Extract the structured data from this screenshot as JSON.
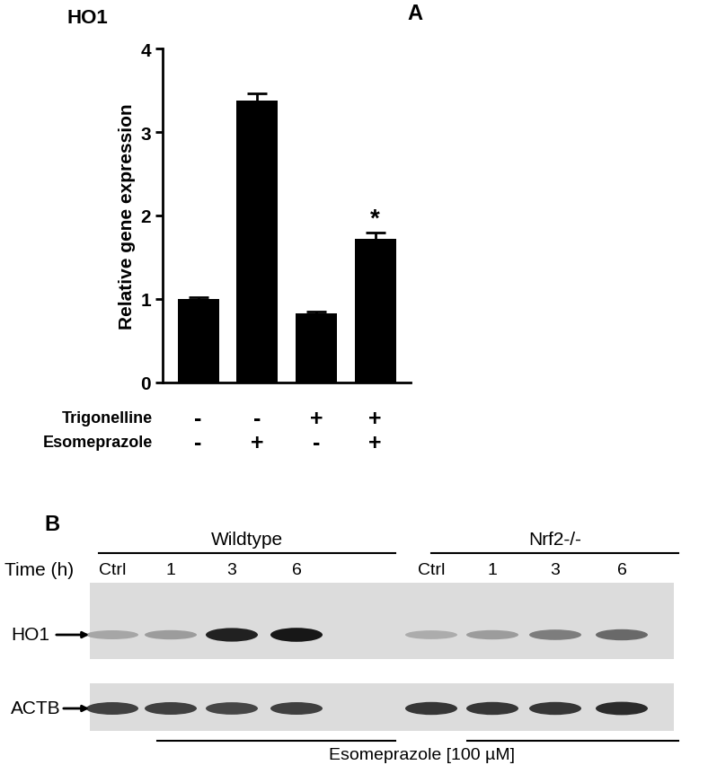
{
  "chart_data": {
    "type": "bar",
    "panel_label": "A",
    "title": "HO1",
    "y_label": "Relative gene expression",
    "categories": [
      null,
      null,
      null,
      null
    ],
    "values": [
      1.0,
      3.38,
      0.82,
      1.72
    ],
    "errors": [
      0.02,
      0.09,
      0.03,
      0.07
    ],
    "color": "#000000",
    "ylim": [
      0,
      4
    ],
    "yticks": [
      0,
      1,
      2,
      3,
      4
    ],
    "conditions": [
      {
        "label": "Trigonelline",
        "values": [
          "-",
          "-",
          "+",
          "+"
        ]
      },
      {
        "label": "Esomeprazole",
        "values": [
          "-",
          "+",
          "-",
          "+"
        ]
      }
    ],
    "annotations": [
      {
        "index": 3,
        "text": "*"
      }
    ]
  },
  "blot": {
    "panel_label": "B",
    "time_label": "Time (h)",
    "groups": [
      {
        "label": "Wildtype",
        "lanes": [
          "Ctrl",
          "1",
          "3",
          "6"
        ]
      },
      {
        "label": "Nrf2-/-",
        "lanes": [
          "Ctrl",
          "1",
          "3",
          "6"
        ]
      }
    ],
    "rows": [
      "HO1",
      "ACTB"
    ],
    "treatment": "Esomeprazole [100 µM]"
  }
}
